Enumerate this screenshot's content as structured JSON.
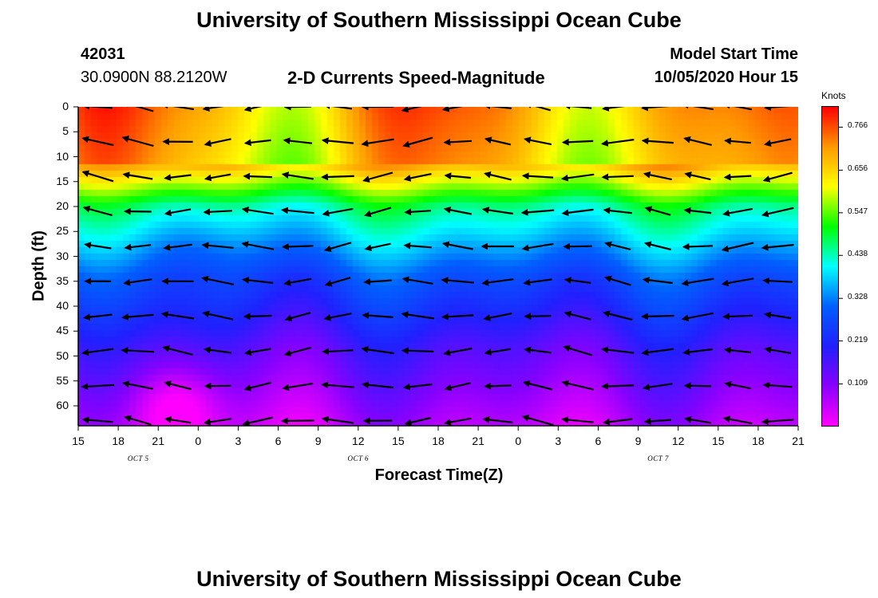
{
  "chart_data": {
    "type": "heatmap",
    "title": "University of Southern Mississippi Ocean Cube",
    "subtitle": "2-D Currents Speed-Magnitude",
    "footer_title": "University of Southern Mississippi Ocean Cube",
    "station": "42031",
    "location": "30.0900N 88.2120W",
    "model_start_label": "Model Start Time",
    "model_start_value": "10/05/2020 Hour 15",
    "xlabel": "Forecast Time(Z)",
    "ylabel": "Depth (ft)",
    "x_ticks": [
      "15",
      "18",
      "21",
      "0",
      "3",
      "6",
      "9",
      "12",
      "15",
      "18",
      "21",
      "0",
      "3",
      "6",
      "9",
      "12",
      "15",
      "18",
      "21"
    ],
    "x_range_hours": [
      0,
      54
    ],
    "dates": [
      {
        "label": "OCT 5",
        "hour": 4.5
      },
      {
        "label": "OCT 6",
        "hour": 21
      },
      {
        "label": "OCT 7",
        "hour": 43.5
      }
    ],
    "y_ticks": [
      "0",
      "5",
      "10",
      "15",
      "20",
      "25",
      "30",
      "35",
      "40",
      "45",
      "50",
      "55",
      "60"
    ],
    "y_range_ft": [
      0,
      64
    ],
    "colorbar_unit": "Knots",
    "colorbar_range": [
      0.0,
      0.82
    ],
    "colorbar_ticks": [
      "0.766",
      "0.656",
      "0.547",
      "0.438",
      "0.328",
      "0.219",
      "0.109"
    ],
    "colorbar_tick_values": [
      0.766,
      0.656,
      0.547,
      0.438,
      0.328,
      0.219,
      0.109
    ],
    "vector_hours": [
      1.5,
      4.5,
      7.5,
      10.5,
      13.5,
      16.5,
      19.5,
      22.5,
      25.5,
      28.5,
      31.5,
      34.5,
      37.5,
      40.5,
      43.5,
      46.5,
      49.5,
      52.5
    ],
    "vector_depths_ft": [
      0,
      7,
      14,
      21,
      28,
      35,
      42,
      49,
      56,
      63
    ],
    "vector_direction_note": "Arrows point predominantly westward (toward smaller x) with slight tilts."
  },
  "colors": {
    "background": "#ffffff",
    "arrow": "#000000",
    "colormap": [
      "#ff00ff",
      "#8a00ff",
      "#2020ff",
      "#0060ff",
      "#00ffff",
      "#00ff00",
      "#ffff00",
      "#ff9900",
      "#ff0000"
    ]
  }
}
